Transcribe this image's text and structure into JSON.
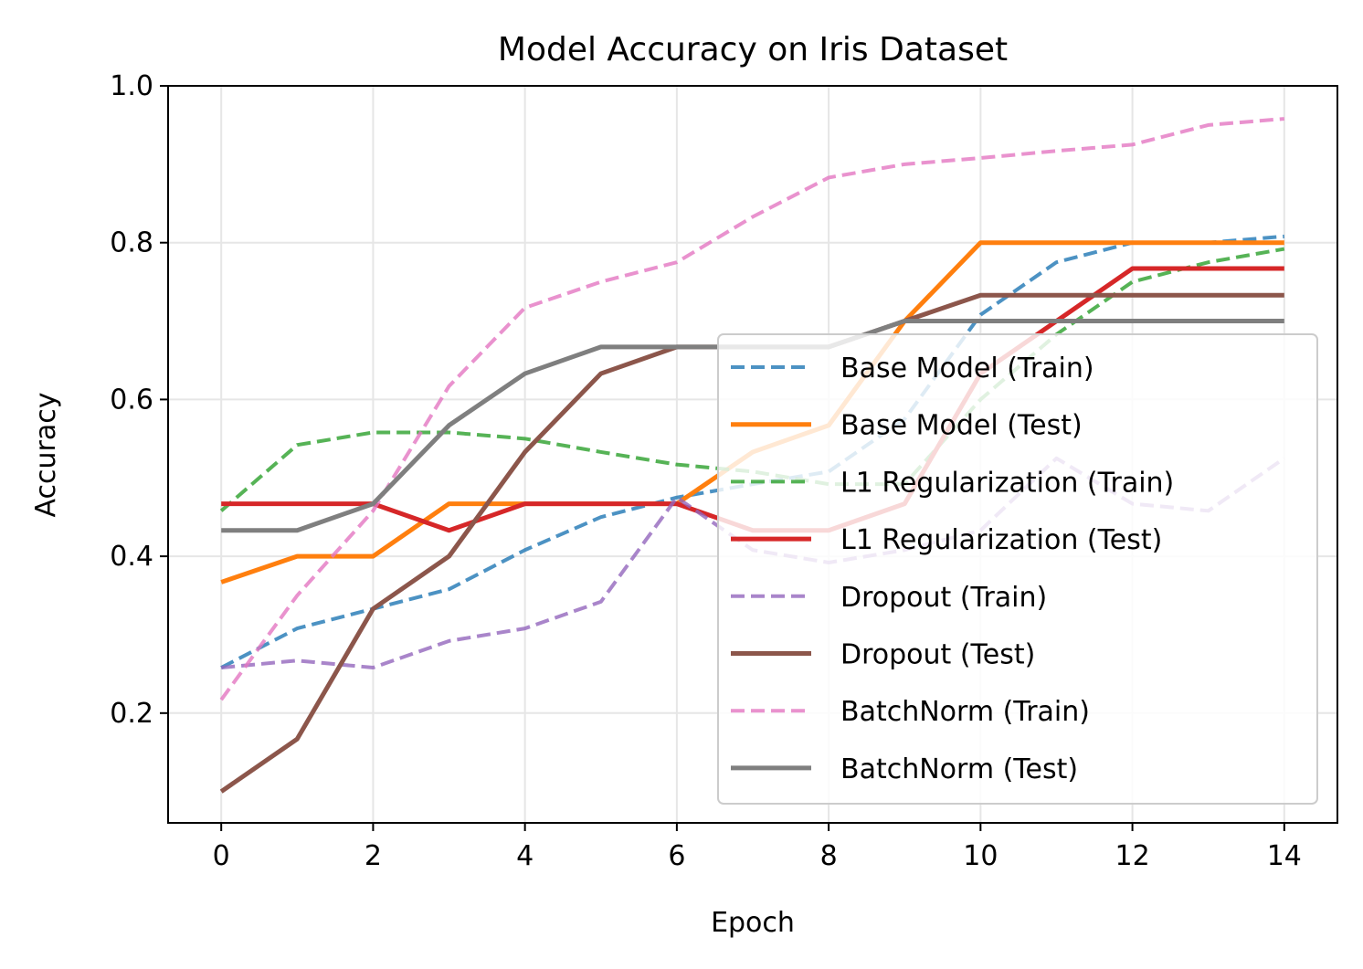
{
  "chart_data": {
    "type": "line",
    "title": "Model Accuracy on Iris Dataset",
    "xlabel": "Epoch",
    "ylabel": "Accuracy",
    "xlim": [
      -0.7,
      14.7
    ],
    "ylim": [
      0.06,
      1.0
    ],
    "xticks": [
      0,
      2,
      4,
      6,
      8,
      10,
      12,
      14
    ],
    "xtick_labels": [
      "0",
      "2",
      "4",
      "6",
      "8",
      "10",
      "12",
      "14"
    ],
    "yticks": [
      0.2,
      0.4,
      0.6,
      0.8,
      1.0
    ],
    "ytick_labels": [
      "0.2",
      "0.4",
      "0.6",
      "0.8",
      "1.0"
    ],
    "grid": true,
    "legend_position": "lower right",
    "x": [
      0,
      1,
      2,
      3,
      4,
      5,
      6,
      7,
      8,
      9,
      10,
      11,
      12,
      13,
      14
    ],
    "series": [
      {
        "name": "Base Model (Train)",
        "color": "#1f77b4",
        "dash": "dashed",
        "values": [
          0.258,
          0.308,
          0.333,
          0.358,
          0.408,
          0.45,
          0.475,
          0.492,
          0.508,
          0.575,
          0.708,
          0.775,
          0.8,
          0.8,
          0.808
        ]
      },
      {
        "name": "Base Model (Test)",
        "color": "#ff7f0e",
        "dash": "solid",
        "values": [
          0.367,
          0.4,
          0.4,
          0.467,
          0.467,
          0.467,
          0.467,
          0.533,
          0.567,
          0.7,
          0.8,
          0.8,
          0.8,
          0.8,
          0.8
        ]
      },
      {
        "name": "L1 Regularization (Train)",
        "color": "#2ca02c",
        "dash": "dashed",
        "values": [
          0.458,
          0.542,
          0.558,
          0.558,
          0.55,
          0.533,
          0.517,
          0.508,
          0.492,
          0.492,
          0.6,
          0.683,
          0.75,
          0.775,
          0.792
        ]
      },
      {
        "name": "L1 Regularization (Test)",
        "color": "#d62728",
        "dash": "solid",
        "values": [
          0.467,
          0.467,
          0.467,
          0.433,
          0.467,
          0.467,
          0.467,
          0.433,
          0.433,
          0.467,
          0.633,
          0.7,
          0.767,
          0.767,
          0.767
        ]
      },
      {
        "name": "Dropout (Train)",
        "color": "#9467bd",
        "dash": "dashed",
        "values": [
          0.258,
          0.267,
          0.258,
          0.292,
          0.308,
          0.342,
          0.475,
          0.408,
          0.392,
          0.408,
          0.433,
          0.525,
          0.467,
          0.458,
          0.525
        ]
      },
      {
        "name": "Dropout (Test)",
        "color": "#8c564b",
        "dash": "solid",
        "values": [
          0.1,
          0.167,
          0.333,
          0.4,
          0.533,
          0.633,
          0.667,
          0.667,
          0.667,
          0.7,
          0.733,
          0.733,
          0.733,
          0.733,
          0.733
        ]
      },
      {
        "name": "BatchNorm (Train)",
        "color": "#e377c2",
        "dash": "dashed",
        "values": [
          0.217,
          0.35,
          0.458,
          0.617,
          0.717,
          0.75,
          0.775,
          0.833,
          0.883,
          0.9,
          0.908,
          0.917,
          0.925,
          0.95,
          0.958
        ]
      },
      {
        "name": "BatchNorm (Test)",
        "color": "#7f7f7f",
        "dash": "solid",
        "values": [
          0.433,
          0.433,
          0.467,
          0.567,
          0.633,
          0.667,
          0.667,
          0.667,
          0.667,
          0.7,
          0.7,
          0.7,
          0.7,
          0.7,
          0.7
        ]
      }
    ]
  }
}
